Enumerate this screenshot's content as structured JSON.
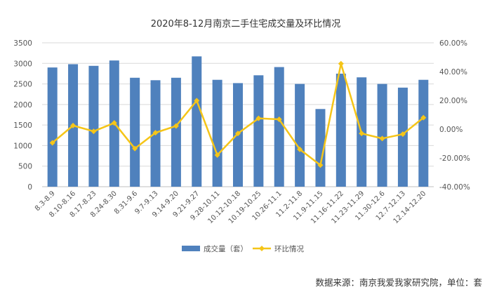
{
  "chart_data": {
    "type": "bar",
    "title": "2020年8-12月南京二手住宅成交量及环比情况",
    "categories": [
      "8.3-8.9",
      "8.10-8.16",
      "8.17-8.23",
      "8.24-8.30",
      "8.31-9.6",
      "9.7-9.13",
      "9.14-9.20",
      "9.21-9.27",
      "9.28-10.11",
      "10.12-10.18",
      "10.19-10.25",
      "10.26-11.1",
      "11.2-11.8",
      "11.9-11.15",
      "11.16-11.22",
      "11.23-11.29",
      "11.30-12.6",
      "12.7-12.13",
      "12.14-12.20"
    ],
    "series": [
      {
        "name": "成交量（套）",
        "type": "bar",
        "axis": "left",
        "color": "#4f81bd",
        "values": [
          2900,
          2980,
          2940,
          3070,
          2650,
          2590,
          2650,
          3170,
          2600,
          2520,
          2710,
          2910,
          2500,
          1890,
          2750,
          2660,
          2500,
          2410,
          2600
        ]
      },
      {
        "name": "环比情况",
        "type": "line",
        "axis": "right",
        "color": "#f5c518",
        "values": [
          -9.5,
          2.5,
          -1.5,
          4.3,
          -13.5,
          -2.5,
          2.2,
          19.8,
          -18.0,
          -3.0,
          7.5,
          6.8,
          -14.0,
          -25.0,
          45.5,
          -3.0,
          -6.5,
          -3.5,
          8.0
        ]
      }
    ],
    "left_axis": {
      "min": 0,
      "max": 3500,
      "step": 500,
      "tick_labels": [
        "0",
        "500",
        "1000",
        "1500",
        "2000",
        "2500",
        "3000",
        "3500"
      ]
    },
    "right_axis": {
      "min": -40,
      "max": 60,
      "step": 20,
      "tick_labels": [
        "-40.00%",
        "-20.00%",
        "0.00%",
        "20.00%",
        "40.00%",
        "60.00%"
      ]
    },
    "grid": true,
    "legend_position": "bottom"
  },
  "source_note": "数据来源：南京我爱我家研究院，单位：套"
}
